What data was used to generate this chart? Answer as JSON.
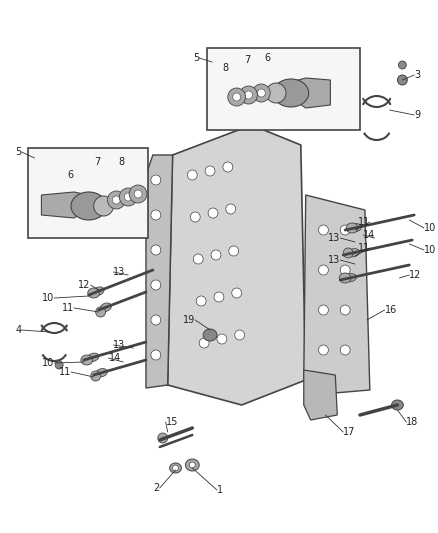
{
  "bg_color": "#ffffff",
  "fig_width": 4.38,
  "fig_height": 5.33,
  "dpi": 100,
  "line_color": "#333333",
  "text_color": "#222222",
  "dgray": "#444444",
  "mgray": "#888888",
  "lgray": "#bbbbbb",
  "body_fc": "#d0d0d0",
  "plate_fc": "#c8c8c8"
}
